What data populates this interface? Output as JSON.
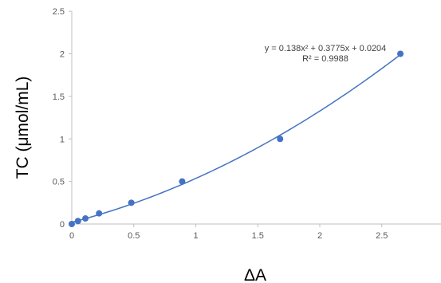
{
  "chart_data": {
    "type": "scatter",
    "xlabel": "ΔA",
    "ylabel": "TC (μmol/mL)",
    "xlim": [
      0,
      3
    ],
    "ylim": [
      0,
      2.5
    ],
    "x_ticks": [
      "0",
      "0.5",
      "1",
      "1.5",
      "2",
      "2.5"
    ],
    "y_ticks": [
      "0",
      "0.5",
      "1",
      "1.5",
      "2",
      "2.5"
    ],
    "grid": false,
    "legend": "none",
    "series": [
      {
        "points": [
          {
            "x": 0.0,
            "y": 0.0
          },
          {
            "x": 0.05,
            "y": 0.035
          },
          {
            "x": 0.11,
            "y": 0.065
          },
          {
            "x": 0.22,
            "y": 0.125
          },
          {
            "x": 0.48,
            "y": 0.25
          },
          {
            "x": 0.89,
            "y": 0.5
          },
          {
            "x": 1.68,
            "y": 1.0
          },
          {
            "x": 2.65,
            "y": 2.0
          }
        ],
        "color": "#4472c4"
      }
    ],
    "trendline": {
      "type": "polynomial",
      "coefficients": {
        "a": 0.138,
        "b": 0.3775,
        "c": 0.0204
      },
      "x_range": [
        0,
        2.65
      ],
      "color": "#4472c4",
      "equation_text": "y = 0.138x² + 0.3775x + 0.0204",
      "r2_text": "R² = 0.9988"
    }
  }
}
